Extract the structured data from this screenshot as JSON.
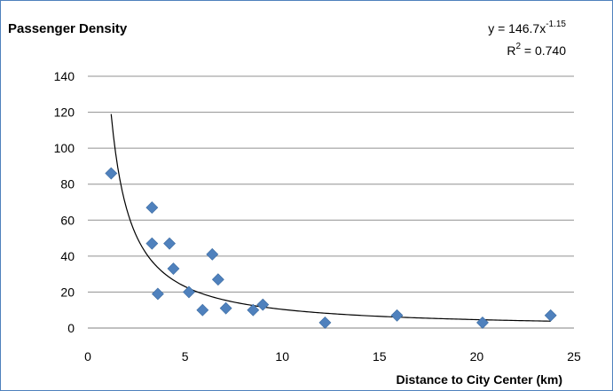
{
  "chart_data": {
    "type": "scatter",
    "title": "Passenger Density",
    "xlabel": "Distance to City Center (km)",
    "ylabel": "",
    "xlim": [
      0,
      25
    ],
    "ylim": [
      0,
      140
    ],
    "xticks": [
      "0",
      "5",
      "10",
      "15",
      "20",
      "25"
    ],
    "yticks": [
      "0",
      "20",
      "40",
      "60",
      "80",
      "100",
      "120",
      "140"
    ],
    "grid": "horizontal",
    "legend": "none",
    "marker_color": "#4f81bd",
    "series": [
      {
        "points": [
          {
            "x": 1.2,
            "y": 86
          },
          {
            "x": 3.3,
            "y": 67
          },
          {
            "x": 3.3,
            "y": 47
          },
          {
            "x": 4.2,
            "y": 47
          },
          {
            "x": 4.4,
            "y": 33
          },
          {
            "x": 3.6,
            "y": 19
          },
          {
            "x": 5.2,
            "y": 20
          },
          {
            "x": 5.9,
            "y": 10
          },
          {
            "x": 6.4,
            "y": 41
          },
          {
            "x": 6.7,
            "y": 27
          },
          {
            "x": 7.1,
            "y": 11
          },
          {
            "x": 8.5,
            "y": 10
          },
          {
            "x": 9.0,
            "y": 13
          },
          {
            "x": 12.2,
            "y": 3
          },
          {
            "x": 15.9,
            "y": 7
          },
          {
            "x": 20.3,
            "y": 3
          },
          {
            "x": 23.8,
            "y": 7
          }
        ]
      }
    ],
    "trendline": {
      "type": "power",
      "coefficient": 146.7,
      "exponent": -1.15,
      "x_range": [
        1.2,
        23.8
      ],
      "equation_prefix": "y = 146.7x",
      "equation_exponent": "-1.15",
      "r2_label": "R",
      "r2_sup": "2",
      "r2_value": " = 0.740"
    }
  }
}
